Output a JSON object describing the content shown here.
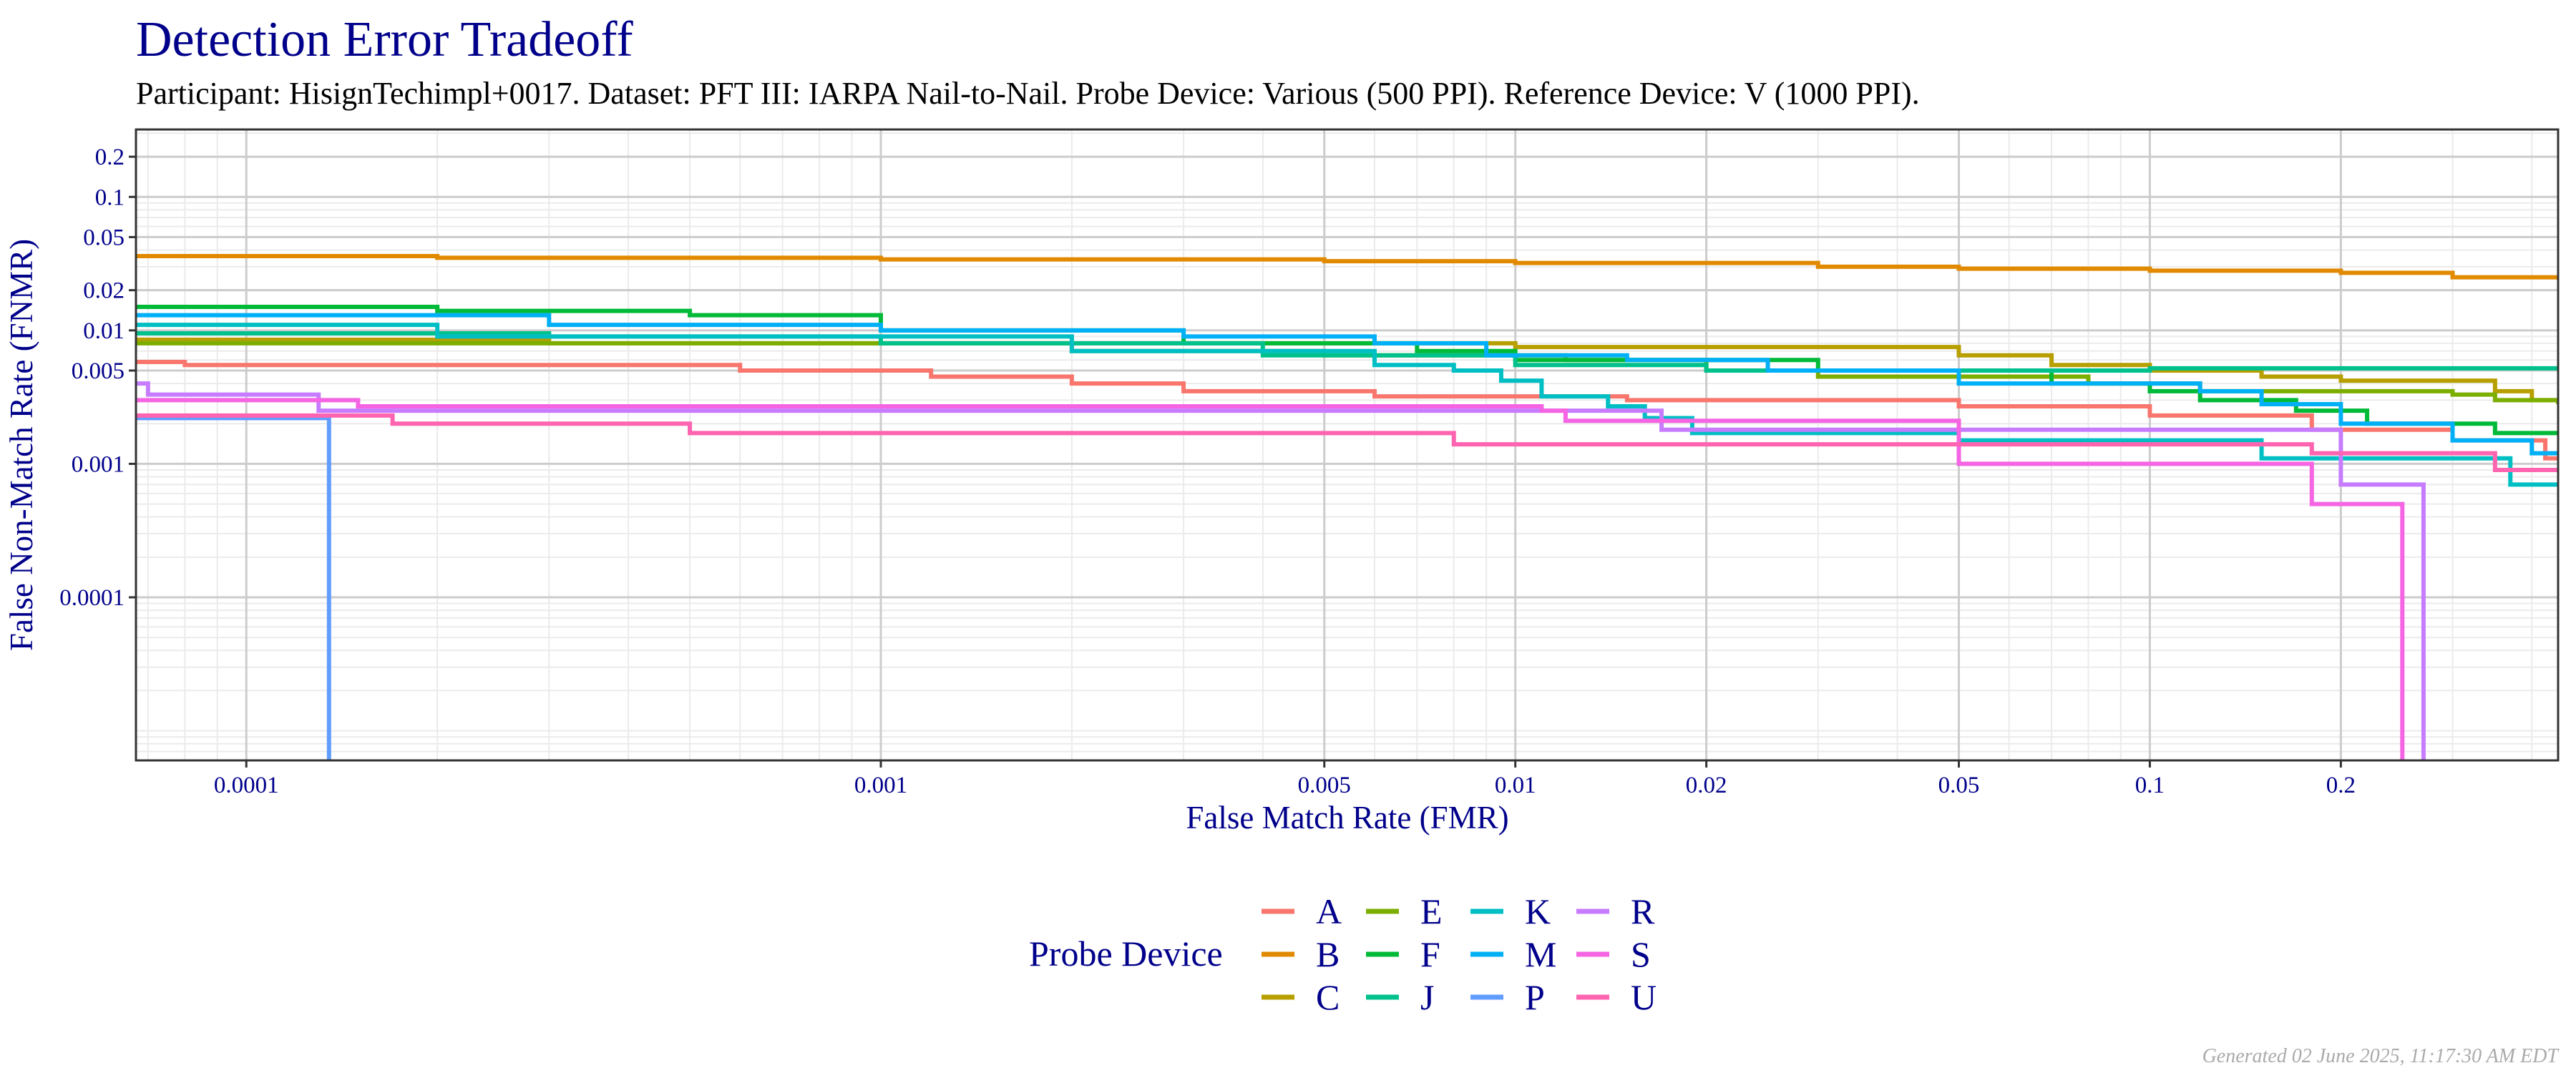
{
  "chart_data": {
    "type": "line",
    "title": "Detection Error Tradeoff",
    "subtitle": "Participant: HisignTechimpl+0017. Dataset: PFT III: IARPA Nail-to-Nail. Probe Device: Various (500 PPI). Reference Device: V (1000 PPI).",
    "xlabel": "False Match Rate (FMR)",
    "ylabel": "False Non-Match Rate (FNMR)",
    "x_scale": "log",
    "y_scale": "log",
    "xlim": [
      6.7e-05,
      0.44
    ],
    "ylim": [
      6e-06,
      0.32
    ],
    "x_ticks": [
      "0.0001",
      "0.001",
      "0.005",
      "0.01",
      "0.02",
      "0.05",
      "0.1",
      "0.2"
    ],
    "y_ticks": [
      "0.2",
      "0.1",
      "0.05",
      "0.02",
      "0.01",
      "0.005",
      "0.001",
      "0.0001"
    ],
    "grid": true,
    "legend_title": "Probe Device",
    "legend_placement": "bottom",
    "series": [
      {
        "name": "A",
        "color": "#F8766D",
        "points": [
          [
            6.7e-05,
            0.0058
          ],
          [
            8e-05,
            0.0055
          ],
          [
            0.0006,
            0.005
          ],
          [
            0.0012,
            0.0045
          ],
          [
            0.002,
            0.004
          ],
          [
            0.003,
            0.0035
          ],
          [
            0.006,
            0.0032
          ],
          [
            0.015,
            0.003
          ],
          [
            0.05,
            0.0027
          ],
          [
            0.1,
            0.0023
          ],
          [
            0.18,
            0.0018
          ],
          [
            0.3,
            0.0015
          ],
          [
            0.42,
            0.0011
          ],
          [
            0.44,
            0.0011
          ]
        ]
      },
      {
        "name": "B",
        "color": "#E18A00",
        "points": [
          [
            6.7e-05,
            0.036
          ],
          [
            0.0002,
            0.035
          ],
          [
            0.001,
            0.034
          ],
          [
            0.005,
            0.033
          ],
          [
            0.01,
            0.032
          ],
          [
            0.03,
            0.03
          ],
          [
            0.05,
            0.029
          ],
          [
            0.1,
            0.028
          ],
          [
            0.2,
            0.027
          ],
          [
            0.3,
            0.025
          ],
          [
            0.44,
            0.024
          ]
        ]
      },
      {
        "name": "C",
        "color": "#B79F00",
        "points": [
          [
            6.7e-05,
            0.0085
          ],
          [
            0.0003,
            0.008
          ],
          [
            0.01,
            0.0075
          ],
          [
            0.035,
            0.0075
          ],
          [
            0.05,
            0.0065
          ],
          [
            0.07,
            0.0055
          ],
          [
            0.1,
            0.005
          ],
          [
            0.15,
            0.0045
          ],
          [
            0.2,
            0.0042
          ],
          [
            0.35,
            0.0035
          ],
          [
            0.4,
            0.003
          ],
          [
            0.44,
            0.003
          ]
        ]
      },
      {
        "name": "E",
        "color": "#7CAE00",
        "points": [
          [
            6.7e-05,
            0.008
          ],
          [
            0.002,
            0.007
          ],
          [
            0.005,
            0.0065
          ],
          [
            0.012,
            0.006
          ],
          [
            0.02,
            0.005
          ],
          [
            0.03,
            0.0045
          ],
          [
            0.08,
            0.004
          ],
          [
            0.12,
            0.0035
          ],
          [
            0.3,
            0.0033
          ],
          [
            0.35,
            0.003
          ],
          [
            0.44,
            0.0028
          ]
        ]
      },
      {
        "name": "F",
        "color": "#00BA38",
        "points": [
          [
            6.7e-05,
            0.015
          ],
          [
            0.0002,
            0.014
          ],
          [
            0.0005,
            0.013
          ],
          [
            0.001,
            0.01
          ],
          [
            0.003,
            0.008
          ],
          [
            0.007,
            0.007
          ],
          [
            0.01,
            0.006
          ],
          [
            0.03,
            0.005
          ],
          [
            0.07,
            0.004
          ],
          [
            0.1,
            0.0035
          ],
          [
            0.12,
            0.003
          ],
          [
            0.17,
            0.0025
          ],
          [
            0.22,
            0.002
          ],
          [
            0.35,
            0.0017
          ],
          [
            0.44,
            0.0017
          ]
        ]
      },
      {
        "name": "J",
        "color": "#00C08B",
        "points": [
          [
            6.7e-05,
            0.0095
          ],
          [
            0.0003,
            0.009
          ],
          [
            0.001,
            0.008
          ],
          [
            0.004,
            0.0065
          ],
          [
            0.01,
            0.0055
          ],
          [
            0.02,
            0.005
          ],
          [
            0.1,
            0.0052
          ],
          [
            0.44,
            0.005
          ]
        ]
      },
      {
        "name": "K",
        "color": "#00BFC4",
        "points": [
          [
            6.7e-05,
            0.011
          ],
          [
            0.0002,
            0.009
          ],
          [
            0.002,
            0.007
          ],
          [
            0.006,
            0.0055
          ],
          [
            0.008,
            0.005
          ],
          [
            0.0095,
            0.0042
          ],
          [
            0.011,
            0.0032
          ],
          [
            0.014,
            0.0027
          ],
          [
            0.016,
            0.0022
          ],
          [
            0.019,
            0.0017
          ],
          [
            0.05,
            0.0015
          ],
          [
            0.15,
            0.0011
          ],
          [
            0.37,
            0.0007
          ],
          [
            0.44,
            0.0007
          ]
        ]
      },
      {
        "name": "M",
        "color": "#00B0F6",
        "points": [
          [
            6.7e-05,
            0.013
          ],
          [
            0.0003,
            0.011
          ],
          [
            0.001,
            0.01
          ],
          [
            0.003,
            0.009
          ],
          [
            0.006,
            0.008
          ],
          [
            0.009,
            0.0065
          ],
          [
            0.015,
            0.006
          ],
          [
            0.025,
            0.005
          ],
          [
            0.05,
            0.004
          ],
          [
            0.12,
            0.0035
          ],
          [
            0.15,
            0.0028
          ],
          [
            0.2,
            0.002
          ],
          [
            0.3,
            0.0015
          ],
          [
            0.4,
            0.0012
          ],
          [
            0.44,
            0.0012
          ]
        ]
      },
      {
        "name": "P",
        "color": "#619CFF",
        "points": [
          [
            6.7e-05,
            0.0022
          ],
          [
            0.000135,
            0.0022
          ],
          [
            0.000135,
            6e-06
          ]
        ]
      },
      {
        "name": "R",
        "color": "#C77CFF",
        "points": [
          [
            6.7e-05,
            0.004
          ],
          [
            7e-05,
            0.0033
          ],
          [
            0.00013,
            0.0033
          ],
          [
            0.00013,
            0.0025
          ],
          [
            0.017,
            0.0025
          ],
          [
            0.017,
            0.0018
          ],
          [
            0.2,
            0.0018
          ],
          [
            0.2,
            0.0007
          ],
          [
            0.27,
            0.0007
          ],
          [
            0.27,
            6e-06
          ]
        ]
      },
      {
        "name": "S",
        "color": "#F564E3",
        "points": [
          [
            6.7e-05,
            0.003
          ],
          [
            0.00015,
            0.0027
          ],
          [
            0.011,
            0.0025
          ],
          [
            0.012,
            0.0021
          ],
          [
            0.05,
            0.0021
          ],
          [
            0.05,
            0.001
          ],
          [
            0.18,
            0.001
          ],
          [
            0.18,
            0.0005
          ],
          [
            0.25,
            0.0005
          ],
          [
            0.25,
            6e-06
          ]
        ]
      },
      {
        "name": "U",
        "color": "#FF64B0",
        "points": [
          [
            6.7e-05,
            0.0023
          ],
          [
            0.00017,
            0.0022
          ],
          [
            0.00017,
            0.002
          ],
          [
            0.0005,
            0.0017
          ],
          [
            0.008,
            0.0017
          ],
          [
            0.008,
            0.0014
          ],
          [
            0.18,
            0.0014
          ],
          [
            0.18,
            0.0012
          ],
          [
            0.3,
            0.0012
          ],
          [
            0.35,
            0.0009
          ],
          [
            0.44,
            0.0009
          ]
        ]
      }
    ]
  },
  "footer": "Generated 02 June 2025, 11:17:30 AM EDT"
}
